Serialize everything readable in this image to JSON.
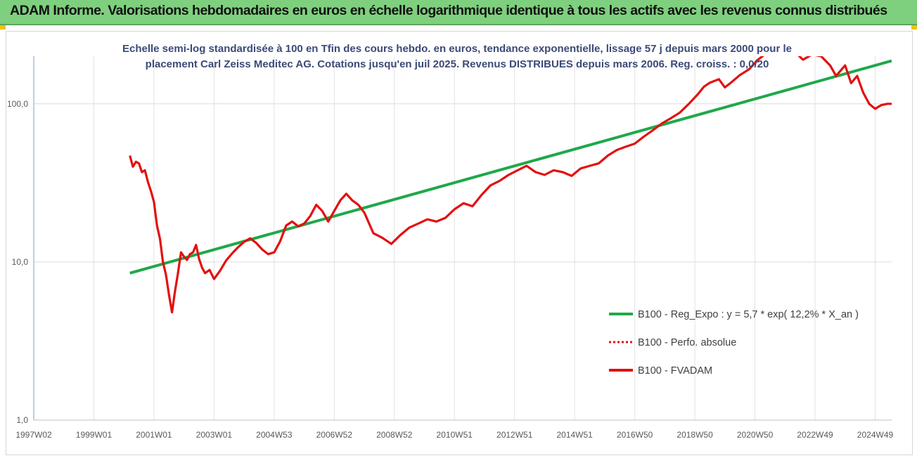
{
  "header": {
    "title": "ADAM Informe. Valorisations hebdomadaires en euros en échelle logarithmique identique à tous les actifs avec les revenus connus distribués"
  },
  "colors": {
    "header_bg": "#7ed07e",
    "regression": "#1fa84a",
    "fvadam": "#e31010",
    "perf_absolue": "#e31010",
    "subtitle": "#3b4a78"
  },
  "chart_data": {
    "type": "line",
    "title": "Echelle semi-log standardisée à 100 en Tfin des cours hebdo. en euros, tendance exponentielle, lissage 57 j depuis mars 2000 pour le placement Carl Zeiss Meditec AG. Cotations jusqu'en juil 2025. Revenus DISTRIBUES depuis mars 2006. Reg. croiss. : 0,0/20",
    "title_lines": [
      "Echelle semi-log standardisée à 100 en Tfin des cours hebdo. en euros, tendance exponentielle, lissage 57 j depuis mars 2000 pour le",
      "placement Carl Zeiss Meditec AG. Cotations jusqu'en juil 2025. Revenus DISTRIBUES depuis mars 2006. Reg. croiss. : 0,0/20"
    ],
    "y_scale": "log",
    "ylim": [
      1,
      200
    ],
    "y_ticks": [
      1,
      10,
      100
    ],
    "y_tick_labels": [
      "1,0",
      "10,0",
      "100,0"
    ],
    "x_range": [
      1997.0,
      2025.55
    ],
    "x_ticks": [
      1997.0,
      1999.0,
      2001.0,
      2003.0,
      2005.0,
      2007.0,
      2009.0,
      2011.0,
      2013.0,
      2015.0,
      2017.0,
      2019.0,
      2021.0,
      2023.0,
      2025.0
    ],
    "x_tick_labels": [
      "1997W02",
      "1999W01",
      "2001W01",
      "2003W01",
      "2004W53",
      "2006W52",
      "2008W52",
      "2010W51",
      "2012W51",
      "2014W51",
      "2016W50",
      "2018W50",
      "2020W50",
      "2022W49",
      "2024W49"
    ],
    "grid": true,
    "legend_position": "bottom-right",
    "series": [
      {
        "name": "B100 - Reg_Expo : y = 5,7 * exp( 12,2% *  X_an )",
        "style": "solid-green",
        "x": [
          2000.2,
          2025.55
        ],
        "y": [
          8.5,
          187
        ]
      },
      {
        "name": "B100 - Perfo. absolue",
        "style": "dotted-red",
        "x": [],
        "y": []
      },
      {
        "name": "B100 - FVADAM",
        "style": "solid-red",
        "x": [
          2000.2,
          2000.3,
          2000.4,
          2000.5,
          2000.6,
          2000.7,
          2000.8,
          2000.9,
          2001.0,
          2001.1,
          2001.2,
          2001.3,
          2001.4,
          2001.5,
          2001.6,
          2001.7,
          2001.8,
          2001.9,
          2002.0,
          2002.1,
          2002.2,
          2002.3,
          2002.4,
          2002.5,
          2002.6,
          2002.7,
          2002.85,
          2003.0,
          2003.2,
          2003.4,
          2003.6,
          2003.8,
          2004.0,
          2004.2,
          2004.4,
          2004.6,
          2004.8,
          2005.0,
          2005.2,
          2005.4,
          2005.6,
          2005.8,
          2006.0,
          2006.2,
          2006.4,
          2006.6,
          2006.8,
          2007.0,
          2007.2,
          2007.4,
          2007.6,
          2007.8,
          2008.0,
          2008.3,
          2008.6,
          2008.9,
          2009.2,
          2009.5,
          2009.8,
          2010.1,
          2010.4,
          2010.7,
          2011.0,
          2011.3,
          2011.6,
          2011.9,
          2012.2,
          2012.5,
          2012.8,
          2013.1,
          2013.4,
          2013.7,
          2014.0,
          2014.3,
          2014.6,
          2014.9,
          2015.2,
          2015.5,
          2015.8,
          2016.1,
          2016.4,
          2016.7,
          2017.0,
          2017.3,
          2017.6,
          2017.9,
          2018.2,
          2018.5,
          2018.8,
          2019.1,
          2019.3,
          2019.5,
          2019.8,
          2020.0,
          2020.2,
          2020.5,
          2020.8,
          2021.1,
          2021.4,
          2021.7,
          2022.0,
          2022.3,
          2022.6,
          2022.9,
          2023.2,
          2023.5,
          2023.7,
          2024.0,
          2024.2,
          2024.4,
          2024.6,
          2024.8,
          2025.0,
          2025.2,
          2025.4,
          2025.55
        ],
        "y": [
          47,
          40,
          43,
          42,
          37,
          38,
          32,
          28,
          24,
          17,
          14,
          10,
          8.3,
          6.2,
          4.8,
          6.5,
          8.5,
          11.5,
          10.8,
          10.3,
          11.2,
          11.5,
          12.8,
          10.5,
          9.2,
          8.5,
          8.9,
          7.8,
          8.8,
          10.2,
          11.3,
          12.4,
          13.4,
          14.1,
          13.2,
          12.0,
          11.2,
          11.5,
          13.5,
          17.0,
          18.0,
          16.8,
          17.5,
          19.5,
          23.0,
          21.0,
          18.0,
          21.0,
          24.5,
          27.0,
          24.5,
          23.0,
          20.5,
          15.2,
          14.2,
          13.0,
          14.8,
          16.5,
          17.5,
          18.6,
          18.0,
          19.0,
          21.5,
          23.5,
          22.5,
          26.5,
          30.5,
          32.5,
          35.5,
          38.0,
          40.5,
          37.0,
          35.5,
          38.0,
          37.0,
          35.0,
          39.0,
          40.5,
          42.0,
          47.0,
          51.0,
          53.5,
          56.0,
          62.0,
          68.0,
          75.0,
          81.0,
          88.0,
          100.0,
          115.0,
          128.0,
          136.0,
          143.0,
          127.0,
          136.0,
          152.0,
          165.0,
          190.0,
          210.0,
          225.0,
          230.0,
          215.0,
          190.0,
          205.0,
          200.0,
          175.0,
          150.0,
          175.0,
          135.0,
          150.0,
          118.0,
          100.0,
          93.0,
          98.0,
          100.0,
          100.0
        ]
      }
    ]
  }
}
